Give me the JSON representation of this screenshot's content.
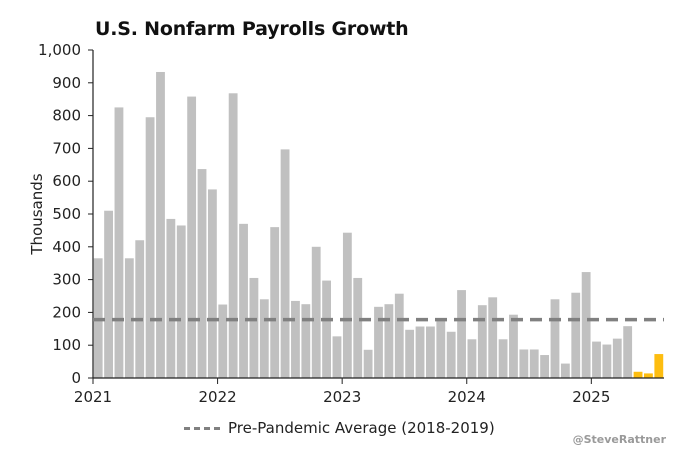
{
  "chart_data": {
    "type": "bar",
    "title": "U.S. Nonfarm Payrolls Growth",
    "ylabel": "Thousands",
    "xlabel": "",
    "ylim": [
      0,
      1000
    ],
    "yticks": [
      "0",
      "100",
      "200",
      "300",
      "400",
      "500",
      "600",
      "700",
      "800",
      "900",
      "1,000"
    ],
    "xticks": [
      "2021",
      "2022",
      "2023",
      "2024",
      "2025"
    ],
    "grid": false,
    "legend_position": "bottom",
    "start_month": "2021-01",
    "colors": {
      "bar": "#c0c0c0",
      "highlight": "#fdbd10",
      "reference": "#808080"
    },
    "series": [
      {
        "values": [
          365,
          510,
          825,
          365,
          420,
          795,
          933,
          485,
          465,
          858,
          637,
          575,
          224,
          868,
          470,
          305,
          240,
          460,
          697,
          235,
          225,
          400,
          297,
          127,
          443,
          305,
          86,
          217,
          225,
          257,
          147,
          157,
          157,
          178,
          141,
          268,
          118,
          222,
          246,
          118,
          193,
          87,
          87,
          70,
          240,
          44,
          260,
          323,
          111,
          102,
          120,
          158,
          19,
          14,
          73
        ],
        "highlight_last": 3
      }
    ],
    "reference_line": {
      "label": "Pre-Pandemic Average (2018-2019)",
      "value": 178
    }
  },
  "credit": "@SteveRattner"
}
